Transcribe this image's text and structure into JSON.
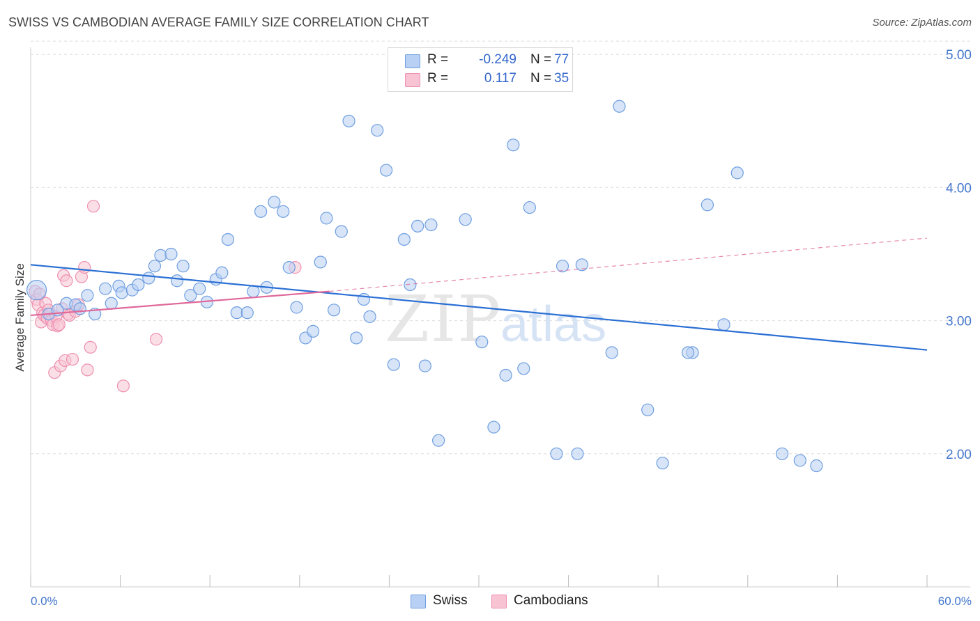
{
  "header": {
    "title": "SWISS VS CAMBODIAN AVERAGE FAMILY SIZE CORRELATION CHART",
    "source": "Source: ZipAtlas.com"
  },
  "watermark": {
    "text_zip": "ZIP",
    "text_atlas": "atlas"
  },
  "legend": {
    "swiss": {
      "r_label": "R =",
      "r_value": "-0.249",
      "n_label": "N =",
      "n_value": "77"
    },
    "cambodians": {
      "r_label": "R =",
      "r_value": "0.117",
      "n_label": "N =",
      "n_value": "35"
    }
  },
  "bottom_legend": {
    "swiss": "Swiss",
    "cambodians": "Cambodians"
  },
  "colors": {
    "swiss_fill": "#b8d0f4",
    "swiss_stroke": "#6e9ee0",
    "swiss_line": "#2a6fd4",
    "cambodian_fill": "#f8c4d4",
    "cambodian_stroke": "#ee8fb0",
    "cambodian_line": "#e0689a",
    "grid": "#dddddd",
    "tick_text": "#4477cc"
  },
  "chart_data": {
    "type": "scatter",
    "title": "SWISS VS CAMBODIAN AVERAGE FAMILY SIZE CORRELATION CHART",
    "xlabel": "",
    "ylabel": "Average Family Size",
    "xlim": [
      0,
      60
    ],
    "ylim": [
      1.0,
      5.1
    ],
    "x_tick_labels": [
      "0.0%",
      "60.0%"
    ],
    "y_ticks": [
      2.0,
      3.0,
      4.0,
      5.0
    ],
    "y_tick_labels": [
      "2.00",
      "3.00",
      "4.00",
      "5.00"
    ],
    "grid": true,
    "legend_position": "top-center",
    "series": [
      {
        "name": "Swiss",
        "points": [
          [
            0.4,
            3.23
          ],
          [
            1.2,
            3.05
          ],
          [
            1.8,
            3.08
          ],
          [
            2.4,
            3.13
          ],
          [
            3.0,
            3.12
          ],
          [
            3.3,
            3.09
          ],
          [
            3.8,
            3.19
          ],
          [
            4.3,
            3.05
          ],
          [
            5.0,
            3.24
          ],
          [
            5.4,
            3.13
          ],
          [
            5.9,
            3.26
          ],
          [
            6.1,
            3.21
          ],
          [
            6.8,
            3.23
          ],
          [
            7.2,
            3.27
          ],
          [
            7.9,
            3.32
          ],
          [
            8.3,
            3.41
          ],
          [
            8.7,
            3.49
          ],
          [
            9.4,
            3.5
          ],
          [
            9.8,
            3.3
          ],
          [
            10.2,
            3.41
          ],
          [
            10.7,
            3.19
          ],
          [
            11.3,
            3.24
          ],
          [
            11.8,
            3.14
          ],
          [
            12.4,
            3.31
          ],
          [
            12.8,
            3.36
          ],
          [
            13.2,
            3.61
          ],
          [
            13.8,
            3.06
          ],
          [
            14.5,
            3.06
          ],
          [
            14.9,
            3.22
          ],
          [
            15.4,
            3.82
          ],
          [
            15.8,
            3.25
          ],
          [
            16.3,
            3.89
          ],
          [
            16.9,
            3.82
          ],
          [
            17.3,
            3.4
          ],
          [
            17.8,
            3.1
          ],
          [
            18.4,
            2.87
          ],
          [
            18.9,
            2.92
          ],
          [
            19.4,
            3.44
          ],
          [
            19.8,
            3.77
          ],
          [
            20.3,
            3.08
          ],
          [
            20.8,
            3.67
          ],
          [
            21.3,
            4.5
          ],
          [
            21.8,
            2.87
          ],
          [
            22.3,
            3.16
          ],
          [
            22.7,
            3.03
          ],
          [
            23.2,
            4.43
          ],
          [
            23.8,
            4.13
          ],
          [
            24.3,
            2.67
          ],
          [
            25.0,
            3.61
          ],
          [
            25.4,
            3.27
          ],
          [
            25.9,
            3.71
          ],
          [
            26.4,
            2.66
          ],
          [
            26.8,
            3.72
          ],
          [
            27.3,
            2.1
          ],
          [
            29.1,
            3.76
          ],
          [
            30.2,
            2.84
          ],
          [
            31.0,
            2.2
          ],
          [
            31.8,
            2.59
          ],
          [
            32.3,
            4.32
          ],
          [
            33.0,
            2.64
          ],
          [
            33.4,
            3.85
          ],
          [
            35.2,
            2.0
          ],
          [
            35.6,
            3.41
          ],
          [
            36.6,
            2.0
          ],
          [
            36.9,
            3.42
          ],
          [
            38.9,
            2.76
          ],
          [
            39.4,
            4.61
          ],
          [
            41.3,
            2.33
          ],
          [
            42.3,
            1.93
          ],
          [
            44.3,
            2.76
          ],
          [
            45.3,
            3.87
          ],
          [
            46.4,
            2.97
          ],
          [
            47.3,
            4.11
          ],
          [
            50.3,
            2.0
          ],
          [
            51.5,
            1.95
          ],
          [
            52.6,
            1.91
          ],
          [
            44.0,
            2.76
          ]
        ],
        "trend": {
          "x": [
            0,
            60
          ],
          "y": [
            3.42,
            2.78
          ]
        }
      },
      {
        "name": "Cambodians",
        "points": [
          [
            0.3,
            3.22
          ],
          [
            0.4,
            3.16
          ],
          [
            0.5,
            3.12
          ],
          [
            0.6,
            3.2
          ],
          [
            0.7,
            2.99
          ],
          [
            0.8,
            3.06
          ],
          [
            0.9,
            3.04
          ],
          [
            1.0,
            3.13
          ],
          [
            1.1,
            3.02
          ],
          [
            1.2,
            3.08
          ],
          [
            1.3,
            3.05
          ],
          [
            1.4,
            3.0
          ],
          [
            1.5,
            2.97
          ],
          [
            1.6,
            2.61
          ],
          [
            1.7,
            3.03
          ],
          [
            1.8,
            2.96
          ],
          [
            1.9,
            2.97
          ],
          [
            2.0,
            2.66
          ],
          [
            2.1,
            3.09
          ],
          [
            2.2,
            3.34
          ],
          [
            2.3,
            2.7
          ],
          [
            2.4,
            3.3
          ],
          [
            2.5,
            3.05
          ],
          [
            2.6,
            3.04
          ],
          [
            2.8,
            2.71
          ],
          [
            3.0,
            3.07
          ],
          [
            3.2,
            3.12
          ],
          [
            3.4,
            3.33
          ],
          [
            3.6,
            3.4
          ],
          [
            3.8,
            2.63
          ],
          [
            4.0,
            2.8
          ],
          [
            4.2,
            3.86
          ],
          [
            6.2,
            2.51
          ],
          [
            8.4,
            2.86
          ],
          [
            17.7,
            3.4
          ]
        ],
        "trend": {
          "x": [
            0,
            20
          ],
          "y": [
            3.04,
            3.22
          ]
        },
        "trend_extension": {
          "x": [
            20,
            60
          ],
          "y": [
            3.22,
            3.62
          ]
        }
      }
    ]
  }
}
